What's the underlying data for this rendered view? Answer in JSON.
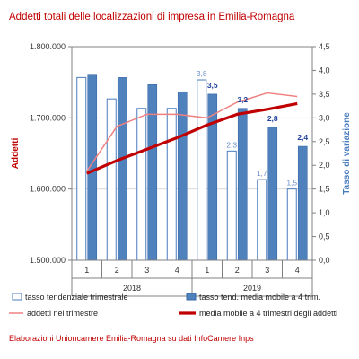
{
  "chart_data": {
    "type": "bar",
    "title": "Addetti totali delle localizzazioni di impresa in Emilia-Romagna",
    "categories": [
      "1",
      "2",
      "3",
      "4",
      "1",
      "2",
      "3",
      "4"
    ],
    "groups": [
      {
        "label": "2018",
        "span": 4
      },
      {
        "label": "2019",
        "span": 4
      }
    ],
    "ylabel": "Addetti",
    "y2label": "Tasso di variazione",
    "ylim": [
      1500000,
      1800000
    ],
    "y2lim": [
      0,
      4.5
    ],
    "yticks": [
      "1.500.000",
      "1.600.000",
      "1.700.000",
      "1.800.000"
    ],
    "y2ticks": [
      "0,0",
      "0,5",
      "1,0",
      "1,5",
      "2,0",
      "2,5",
      "3,0",
      "3,5",
      "4,0",
      "4,5"
    ],
    "series": [
      {
        "name": "tasso tendenziale trimestrale",
        "kind": "bar",
        "axis": "right",
        "style": "outline",
        "color": "#4a7dbf",
        "values": [
          3.85,
          3.4,
          3.2,
          3.2,
          3.8,
          2.3,
          1.7,
          1.5
        ],
        "labels": [
          "",
          "",
          "",
          "",
          "3,8",
          "2,3",
          "1,7",
          "1,5"
        ]
      },
      {
        "name": "tasso tend. media mobile a 4 trim.",
        "kind": "bar",
        "axis": "right",
        "style": "filled",
        "color": "#4f81bd",
        "values": [
          3.9,
          3.85,
          3.7,
          3.55,
          3.5,
          3.2,
          2.8,
          2.4
        ],
        "labels": [
          "",
          "",
          "",
          "",
          "3,5",
          "3,2",
          "2,8",
          "2,4"
        ]
      },
      {
        "name": "addetti nel trimestre",
        "kind": "line",
        "axis": "left",
        "color": "#f08080",
        "values": [
          1625000,
          1688000,
          1705000,
          1705000,
          1700000,
          1722000,
          1735000,
          1730000
        ]
      },
      {
        "name": "media mobile a 4 trimestri degli addetti",
        "kind": "line",
        "axis": "left",
        "color": "#c00000",
        "values": [
          1622000,
          1640000,
          1656000,
          1672000,
          1690000,
          1705000,
          1712000,
          1720000
        ]
      }
    ],
    "label_colors": {
      "outline": "#6b8fc9",
      "filled": "#1f3f99"
    },
    "axis_title_color_left": "#c00000",
    "axis_title_color_right": "#4a7dbf",
    "legend": "bottom"
  },
  "footer": "Elaborazioni Unioncamere Emilia-Romagna su dati InfoCamere Inps"
}
